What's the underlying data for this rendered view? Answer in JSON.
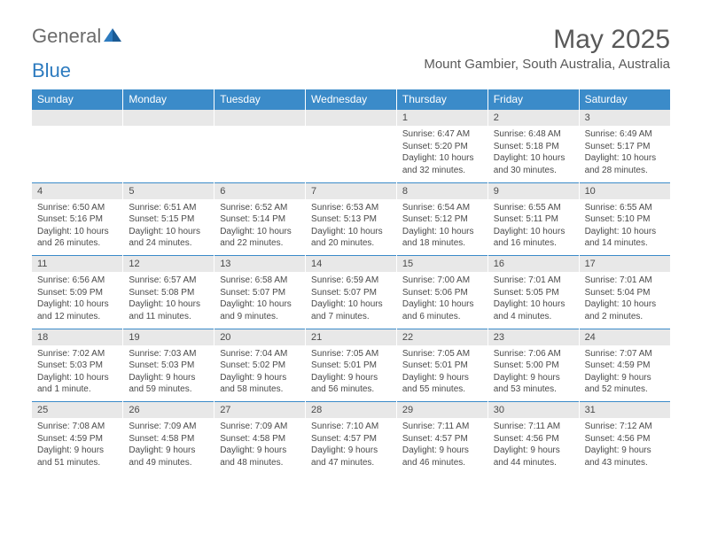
{
  "logo": {
    "text1": "General",
    "text2": "Blue",
    "color_gray": "#6b6b6b",
    "color_blue": "#2d7bbf",
    "icon_color": "#2d7bbf"
  },
  "header": {
    "month_title": "May 2025",
    "location": "Mount Gambier, South Australia, Australia"
  },
  "colors": {
    "header_bg": "#3b8bc9",
    "header_text": "#ffffff",
    "date_bg": "#e8e8e8",
    "border": "#3b8bc9",
    "text": "#4a4a4a"
  },
  "day_names": [
    "Sunday",
    "Monday",
    "Tuesday",
    "Wednesday",
    "Thursday",
    "Friday",
    "Saturday"
  ],
  "weeks": [
    {
      "dates": [
        "",
        "",
        "",
        "",
        "1",
        "2",
        "3"
      ],
      "info": [
        "",
        "",
        "",
        "",
        "Sunrise: 6:47 AM\nSunset: 5:20 PM\nDaylight: 10 hours and 32 minutes.",
        "Sunrise: 6:48 AM\nSunset: 5:18 PM\nDaylight: 10 hours and 30 minutes.",
        "Sunrise: 6:49 AM\nSunset: 5:17 PM\nDaylight: 10 hours and 28 minutes."
      ]
    },
    {
      "dates": [
        "4",
        "5",
        "6",
        "7",
        "8",
        "9",
        "10"
      ],
      "info": [
        "Sunrise: 6:50 AM\nSunset: 5:16 PM\nDaylight: 10 hours and 26 minutes.",
        "Sunrise: 6:51 AM\nSunset: 5:15 PM\nDaylight: 10 hours and 24 minutes.",
        "Sunrise: 6:52 AM\nSunset: 5:14 PM\nDaylight: 10 hours and 22 minutes.",
        "Sunrise: 6:53 AM\nSunset: 5:13 PM\nDaylight: 10 hours and 20 minutes.",
        "Sunrise: 6:54 AM\nSunset: 5:12 PM\nDaylight: 10 hours and 18 minutes.",
        "Sunrise: 6:55 AM\nSunset: 5:11 PM\nDaylight: 10 hours and 16 minutes.",
        "Sunrise: 6:55 AM\nSunset: 5:10 PM\nDaylight: 10 hours and 14 minutes."
      ]
    },
    {
      "dates": [
        "11",
        "12",
        "13",
        "14",
        "15",
        "16",
        "17"
      ],
      "info": [
        "Sunrise: 6:56 AM\nSunset: 5:09 PM\nDaylight: 10 hours and 12 minutes.",
        "Sunrise: 6:57 AM\nSunset: 5:08 PM\nDaylight: 10 hours and 11 minutes.",
        "Sunrise: 6:58 AM\nSunset: 5:07 PM\nDaylight: 10 hours and 9 minutes.",
        "Sunrise: 6:59 AM\nSunset: 5:07 PM\nDaylight: 10 hours and 7 minutes.",
        "Sunrise: 7:00 AM\nSunset: 5:06 PM\nDaylight: 10 hours and 6 minutes.",
        "Sunrise: 7:01 AM\nSunset: 5:05 PM\nDaylight: 10 hours and 4 minutes.",
        "Sunrise: 7:01 AM\nSunset: 5:04 PM\nDaylight: 10 hours and 2 minutes."
      ]
    },
    {
      "dates": [
        "18",
        "19",
        "20",
        "21",
        "22",
        "23",
        "24"
      ],
      "info": [
        "Sunrise: 7:02 AM\nSunset: 5:03 PM\nDaylight: 10 hours and 1 minute.",
        "Sunrise: 7:03 AM\nSunset: 5:03 PM\nDaylight: 9 hours and 59 minutes.",
        "Sunrise: 7:04 AM\nSunset: 5:02 PM\nDaylight: 9 hours and 58 minutes.",
        "Sunrise: 7:05 AM\nSunset: 5:01 PM\nDaylight: 9 hours and 56 minutes.",
        "Sunrise: 7:05 AM\nSunset: 5:01 PM\nDaylight: 9 hours and 55 minutes.",
        "Sunrise: 7:06 AM\nSunset: 5:00 PM\nDaylight: 9 hours and 53 minutes.",
        "Sunrise: 7:07 AM\nSunset: 4:59 PM\nDaylight: 9 hours and 52 minutes."
      ]
    },
    {
      "dates": [
        "25",
        "26",
        "27",
        "28",
        "29",
        "30",
        "31"
      ],
      "info": [
        "Sunrise: 7:08 AM\nSunset: 4:59 PM\nDaylight: 9 hours and 51 minutes.",
        "Sunrise: 7:09 AM\nSunset: 4:58 PM\nDaylight: 9 hours and 49 minutes.",
        "Sunrise: 7:09 AM\nSunset: 4:58 PM\nDaylight: 9 hours and 48 minutes.",
        "Sunrise: 7:10 AM\nSunset: 4:57 PM\nDaylight: 9 hours and 47 minutes.",
        "Sunrise: 7:11 AM\nSunset: 4:57 PM\nDaylight: 9 hours and 46 minutes.",
        "Sunrise: 7:11 AM\nSunset: 4:56 PM\nDaylight: 9 hours and 44 minutes.",
        "Sunrise: 7:12 AM\nSunset: 4:56 PM\nDaylight: 9 hours and 43 minutes."
      ]
    }
  ]
}
